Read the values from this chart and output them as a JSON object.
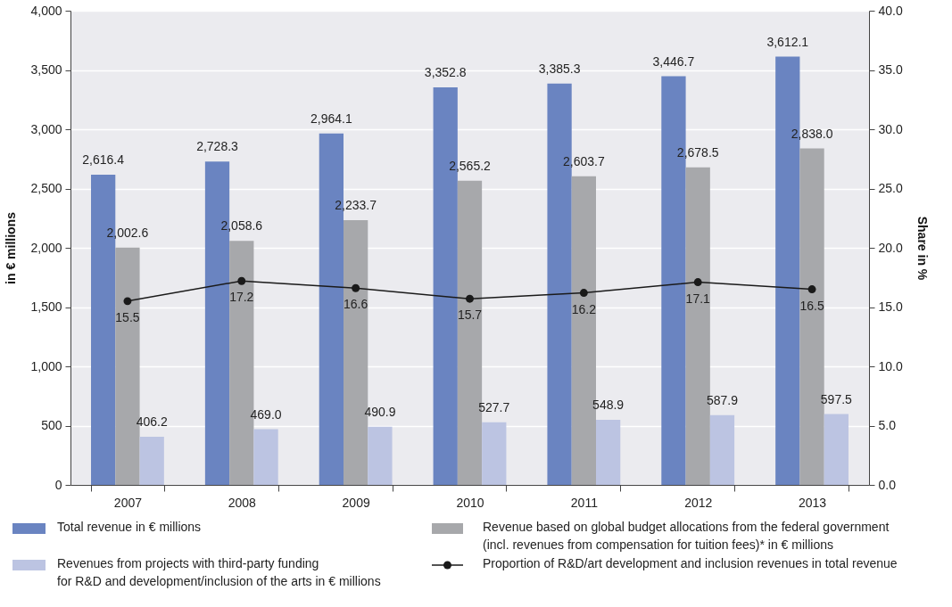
{
  "chart_data": {
    "type": "bar",
    "categories": [
      "2007",
      "2008",
      "2009",
      "2010",
      "2011",
      "2012",
      "2013"
    ],
    "series": [
      {
        "name": "Total revenue in € millions",
        "color": "#6a84c1",
        "values": [
          2616.4,
          2728.3,
          2964.1,
          3352.8,
          3385.3,
          3446.7,
          3612.1
        ],
        "value_labels": [
          "2,616.4",
          "2,728.3",
          "2,964.1",
          "3,352.8",
          "3,385.3",
          "3,446.7",
          "3,612.1"
        ]
      },
      {
        "name": "Revenue based on global budget allocations from the federal government\n(incl. revenues from compensation for tuition fees)* in € millions",
        "color": "#a7a8ab",
        "values": [
          2002.6,
          2058.6,
          2233.7,
          2565.2,
          2603.7,
          2678.5,
          2838.0
        ],
        "value_labels": [
          "2,002.6",
          "2,058.6",
          "2,233.7",
          "2,565.2",
          "2,603.7",
          "2,678.5",
          "2,838.0"
        ]
      },
      {
        "name": "Revenues from projects with third-party funding\nfor R&D and development/inclusion of the arts in € millions",
        "color": "#bcc4e2",
        "values": [
          406.2,
          469.0,
          490.9,
          527.7,
          548.9,
          587.9,
          597.5
        ],
        "value_labels": [
          "406.2",
          "469.0",
          "490.9",
          "527.7",
          "548.9",
          "587.9",
          "597.5"
        ]
      },
      {
        "name": "Proportion of R&D/art development and inclusion revenues in total revenue",
        "type": "line",
        "axis": "y2",
        "marker": "circle",
        "color": "#1a1a1a",
        "values": [
          15.5,
          17.2,
          16.6,
          15.7,
          16.2,
          17.1,
          16.5
        ],
        "value_labels": [
          "15.5",
          "17.2",
          "16.6",
          "15.7",
          "16.2",
          "17.1",
          "16.5"
        ]
      }
    ],
    "ylabel": "in € millions",
    "y2label": "Share in %",
    "ylim": [
      0,
      4000
    ],
    "yticks": [
      0,
      500,
      {
        "value": 1000,
        "label": "1,000"
      },
      {
        "value": 1500,
        "label": "1,500"
      },
      {
        "value": 2000,
        "label": "2,000"
      },
      {
        "value": 2500,
        "label": "2,500"
      },
      {
        "value": 3000,
        "label": "3,000"
      },
      {
        "value": 3500,
        "label": "3,500"
      },
      {
        "value": 4000,
        "label": "4,000"
      }
    ],
    "y2lim": [
      0,
      40
    ],
    "y2ticks": [
      {
        "value": 0,
        "label": "0.0"
      },
      {
        "value": 5,
        "label": "5.0"
      },
      {
        "value": 10,
        "label": "10.0"
      },
      {
        "value": 15,
        "label": "15.0"
      },
      {
        "value": 20,
        "label": "20.0"
      },
      {
        "value": 25,
        "label": "25.0"
      },
      {
        "value": 30,
        "label": "30.0"
      },
      {
        "value": 35,
        "label": "35.0"
      },
      {
        "value": 40,
        "label": "40.0"
      }
    ],
    "grid": "y",
    "legend": "bottom"
  }
}
